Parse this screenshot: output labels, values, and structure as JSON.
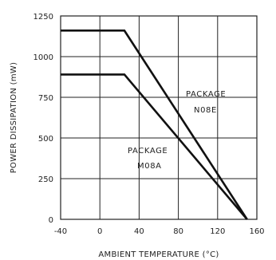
{
  "chart_data": {
    "type": "line",
    "title": "",
    "xlabel": "AMBIENT TEMPERATURE (°C)",
    "ylabel": "POWER DISSIPATION (mW)",
    "xlim": [
      -40,
      160
    ],
    "ylim": [
      0,
      1250
    ],
    "x_ticks": [
      -40,
      0,
      40,
      80,
      120,
      160
    ],
    "y_ticks": [
      0,
      250,
      500,
      750,
      1000,
      1250
    ],
    "x_tick_labels": [
      "-40",
      "0",
      "40",
      "80",
      "120",
      "160"
    ],
    "y_tick_labels": [
      "0",
      "250",
      "500",
      "750",
      "1000",
      "1250"
    ],
    "grid": true,
    "series": [
      {
        "name": "PACKAGE N08E",
        "x": [
          -40,
          25,
          150
        ],
        "y": [
          1160,
          1160,
          0
        ]
      },
      {
        "name": "PACKAGE M08A",
        "x": [
          -40,
          25,
          150
        ],
        "y": [
          890,
          890,
          0
        ]
      }
    ],
    "annotations": [
      {
        "line1": "PACKAGE",
        "line2": "N08E",
        "series": "PACKAGE N08E"
      },
      {
        "line1": "PACKAGE",
        "line2": "M08A",
        "series": "PACKAGE M08A"
      }
    ]
  }
}
